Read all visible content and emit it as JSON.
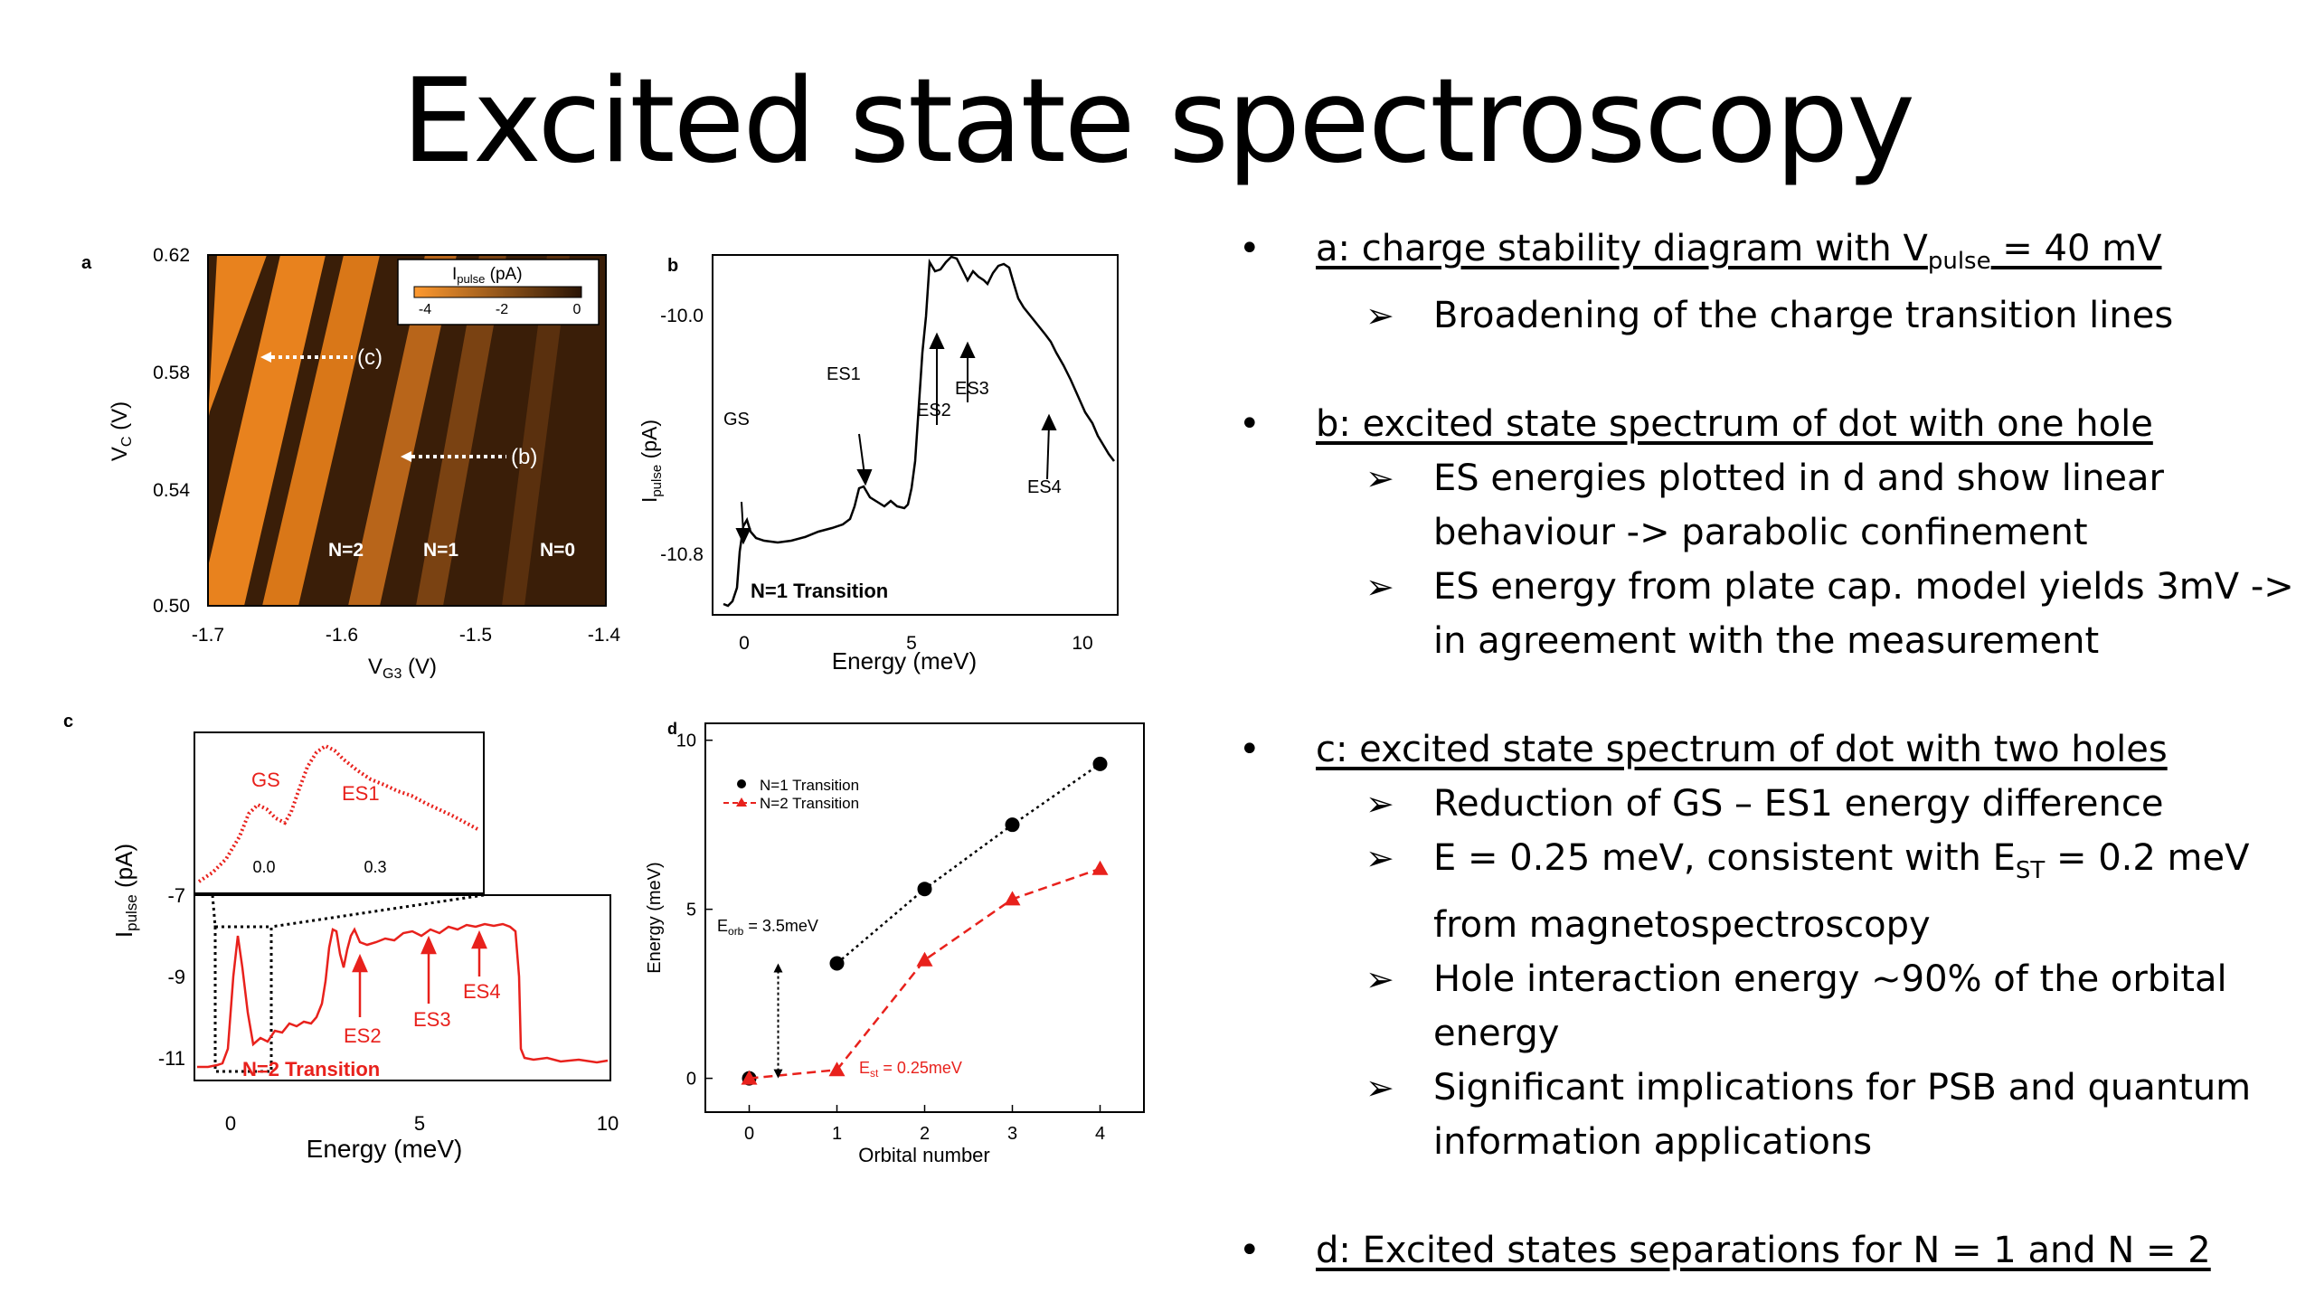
{
  "title": "Excited state spectroscopy",
  "panels": {
    "a": {
      "label": "a",
      "colorbar_title_pre": "I",
      "colorbar_title_sub": "pulse",
      "colorbar_title_post": " (pA)",
      "colorbar_ticks": [
        "-4",
        "-2",
        "0"
      ],
      "yaxis_pre": "V",
      "yaxis_sub": "C",
      "yaxis_post": " (V)",
      "xaxis_pre": "V",
      "xaxis_sub": "G3",
      "xaxis_post": " (V)",
      "yticks": [
        "0.62",
        "0.58",
        "0.54",
        "0.50"
      ],
      "xticks": [
        "-1.7",
        "-1.6",
        "-1.5",
        "-1.4"
      ],
      "annot_c": "(c)",
      "annot_b": "(b)",
      "n2": "N=2",
      "n1": "N=1",
      "n0": "N=0"
    },
    "b": {
      "label": "b",
      "yaxis_pre": "I",
      "yaxis_sub": "pulse",
      "yaxis_post": " (pA)",
      "xaxis": "Energy (meV)",
      "yticks": [
        "-10.0",
        "-10.8"
      ],
      "xticks": [
        "0",
        "5",
        "10"
      ],
      "gs": "GS",
      "es1": "ES1",
      "es2": "ES2",
      "es3": "ES3",
      "es4": "ES4",
      "transition": "N=1 Transition"
    },
    "c": {
      "label": "c",
      "yaxis_pre": "I",
      "yaxis_sub": "pulse",
      "yaxis_post": " (pA)",
      "xaxis": "Energy (meV)",
      "yticks": [
        "-7",
        "-9",
        "-11"
      ],
      "xticks": [
        "0",
        "5",
        "10"
      ],
      "inset_gs": "GS",
      "inset_es1": "ES1",
      "inset_xticks": [
        "0.0",
        "0.3"
      ],
      "es2": "ES2",
      "es3": "ES3",
      "es4": "ES4",
      "transition": "N=2 Transition"
    },
    "d": {
      "label": "d",
      "yaxis": "Energy (meV)",
      "xaxis": "Orbital number",
      "yticks": [
        "10",
        "5",
        "0"
      ],
      "xticks": [
        "0",
        "1",
        "2",
        "3",
        "4"
      ],
      "legend_n1": "N=1 Transition",
      "legend_n2": "N=2 Transition",
      "eorb_pre": "E",
      "eorb_sub": "orb",
      "eorb_post": " = 3.5meV",
      "est_pre": "E",
      "est_sub": "st",
      "est_post": " = 0.25meV"
    }
  },
  "chart_data": [
    {
      "type": "line",
      "panel": "d",
      "xlabel": "Orbital number",
      "ylabel": "Energy (meV)",
      "xlim": [
        -0.5,
        4.5
      ],
      "ylim": [
        -1,
        10.5
      ],
      "series": [
        {
          "name": "N=1 Transition",
          "color": "#000000",
          "x": [
            0,
            1,
            2,
            3,
            4
          ],
          "values": [
            0,
            3.4,
            5.6,
            7.5,
            9.3
          ]
        },
        {
          "name": "N=2 Transition",
          "color": "#e8211c",
          "x": [
            0,
            1,
            2,
            3,
            4
          ],
          "values": [
            0,
            0.25,
            3.5,
            5.3,
            6.2
          ]
        }
      ]
    }
  ],
  "bullets": [
    {
      "head_pre": "a: charge stability diagram with V",
      "head_sub": "pulse",
      "head_post": " = 40 mV",
      "subs": [
        "Broadening of the charge transition lines"
      ]
    },
    {
      "head": "b: excited state spectrum of dot with one hole",
      "subs": [
        "ES energies plotted in d and show linear behaviour -> parabolic confinement",
        "ES energy from plate cap. model yields 3mV -> in agreement with the measurement"
      ]
    },
    {
      "head": "c: excited state spectrum of dot with two holes",
      "sub1": "Reduction of GS – ES1 energy difference",
      "sub2_pre": "E = 0.25 meV, consistent with E",
      "sub2_sub": "ST",
      "sub2_post": " = 0.2 meV from magnetospectroscopy",
      "sub3": "Hole interaction energy ~90% of the orbital energy",
      "sub4": "Significant implications for PSB and quantum information applications"
    },
    {
      "head": "d: Excited states separations for N = 1 and N = 2"
    }
  ],
  "colors": {
    "accent_red": "#e8211c",
    "stability_dark": "#3a1e08",
    "stability_orange": "#e8821e"
  }
}
